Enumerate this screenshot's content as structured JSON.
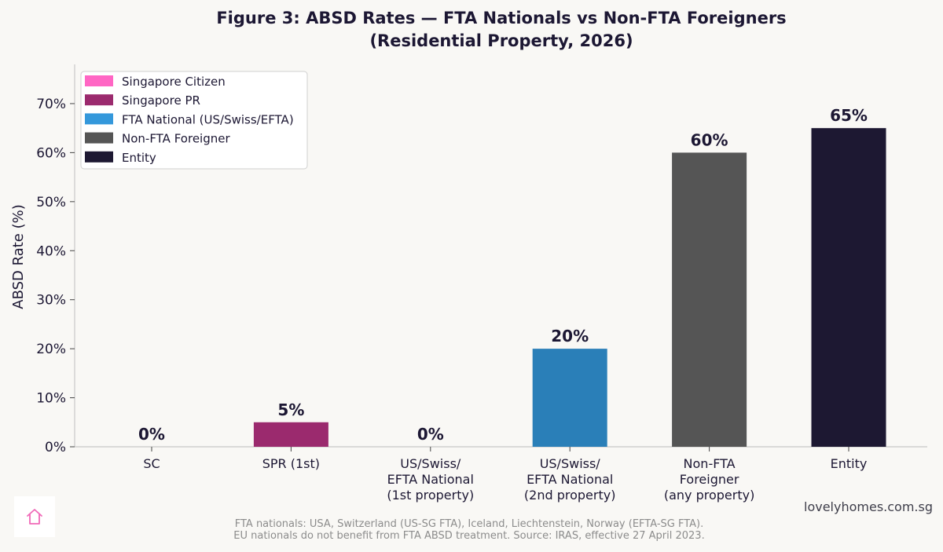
{
  "chart_data": {
    "type": "bar",
    "title": [
      "Figure 3: ABSD Rates — FTA Nationals vs Non-FTA Foreigners",
      "(Residential Property, 2026)"
    ],
    "ylabel": "ABSD Rate (%)",
    "xlabel": "",
    "ylim": [
      0,
      78
    ],
    "yticks": [
      0,
      10,
      20,
      30,
      40,
      50,
      60,
      70
    ],
    "ytick_labels": [
      "0%",
      "10%",
      "20%",
      "30%",
      "40%",
      "50%",
      "60%",
      "70%"
    ],
    "grid": false,
    "legend_position": "top-left",
    "categories": [
      [
        "SC"
      ],
      [
        "SPR (1st)"
      ],
      [
        "US/Swiss/",
        "EFTA National",
        "(1st property)"
      ],
      [
        "US/Swiss/",
        "EFTA National",
        "(2nd property)"
      ],
      [
        "Non-FTA",
        "Foreigner",
        "(any property)"
      ],
      [
        "Entity"
      ]
    ],
    "values": [
      0,
      5,
      0,
      20,
      60,
      65
    ],
    "value_labels": [
      "0%",
      "5%",
      "0%",
      "20%",
      "60%",
      "65%"
    ],
    "bar_colors": [
      "#ff66c4",
      "#9b2a6e",
      "#2a7fb8",
      "#2a7fb8",
      "#555555",
      "#1d1832"
    ],
    "legend": [
      {
        "label": "Singapore Citizen",
        "color": "#ff66c4"
      },
      {
        "label": "Singapore PR",
        "color": "#9b2a6e"
      },
      {
        "label": "FTA National (US/Swiss/EFTA)",
        "color": "#3498db"
      },
      {
        "label": "Non-FTA Foreigner",
        "color": "#555555"
      },
      {
        "label": "Entity",
        "color": "#1d1832"
      }
    ]
  },
  "watermark": "lovelyhomes.com.sg",
  "footnote": [
    "FTA nationals: USA, Switzerland (US-SG FTA), Iceland, Liechtenstein, Norway (EFTA-SG FTA).",
    "EU nationals do not benefit from FTA ABSD treatment. Source: IRAS, effective 27 April 2023."
  ],
  "logo_icon": "house-icon"
}
